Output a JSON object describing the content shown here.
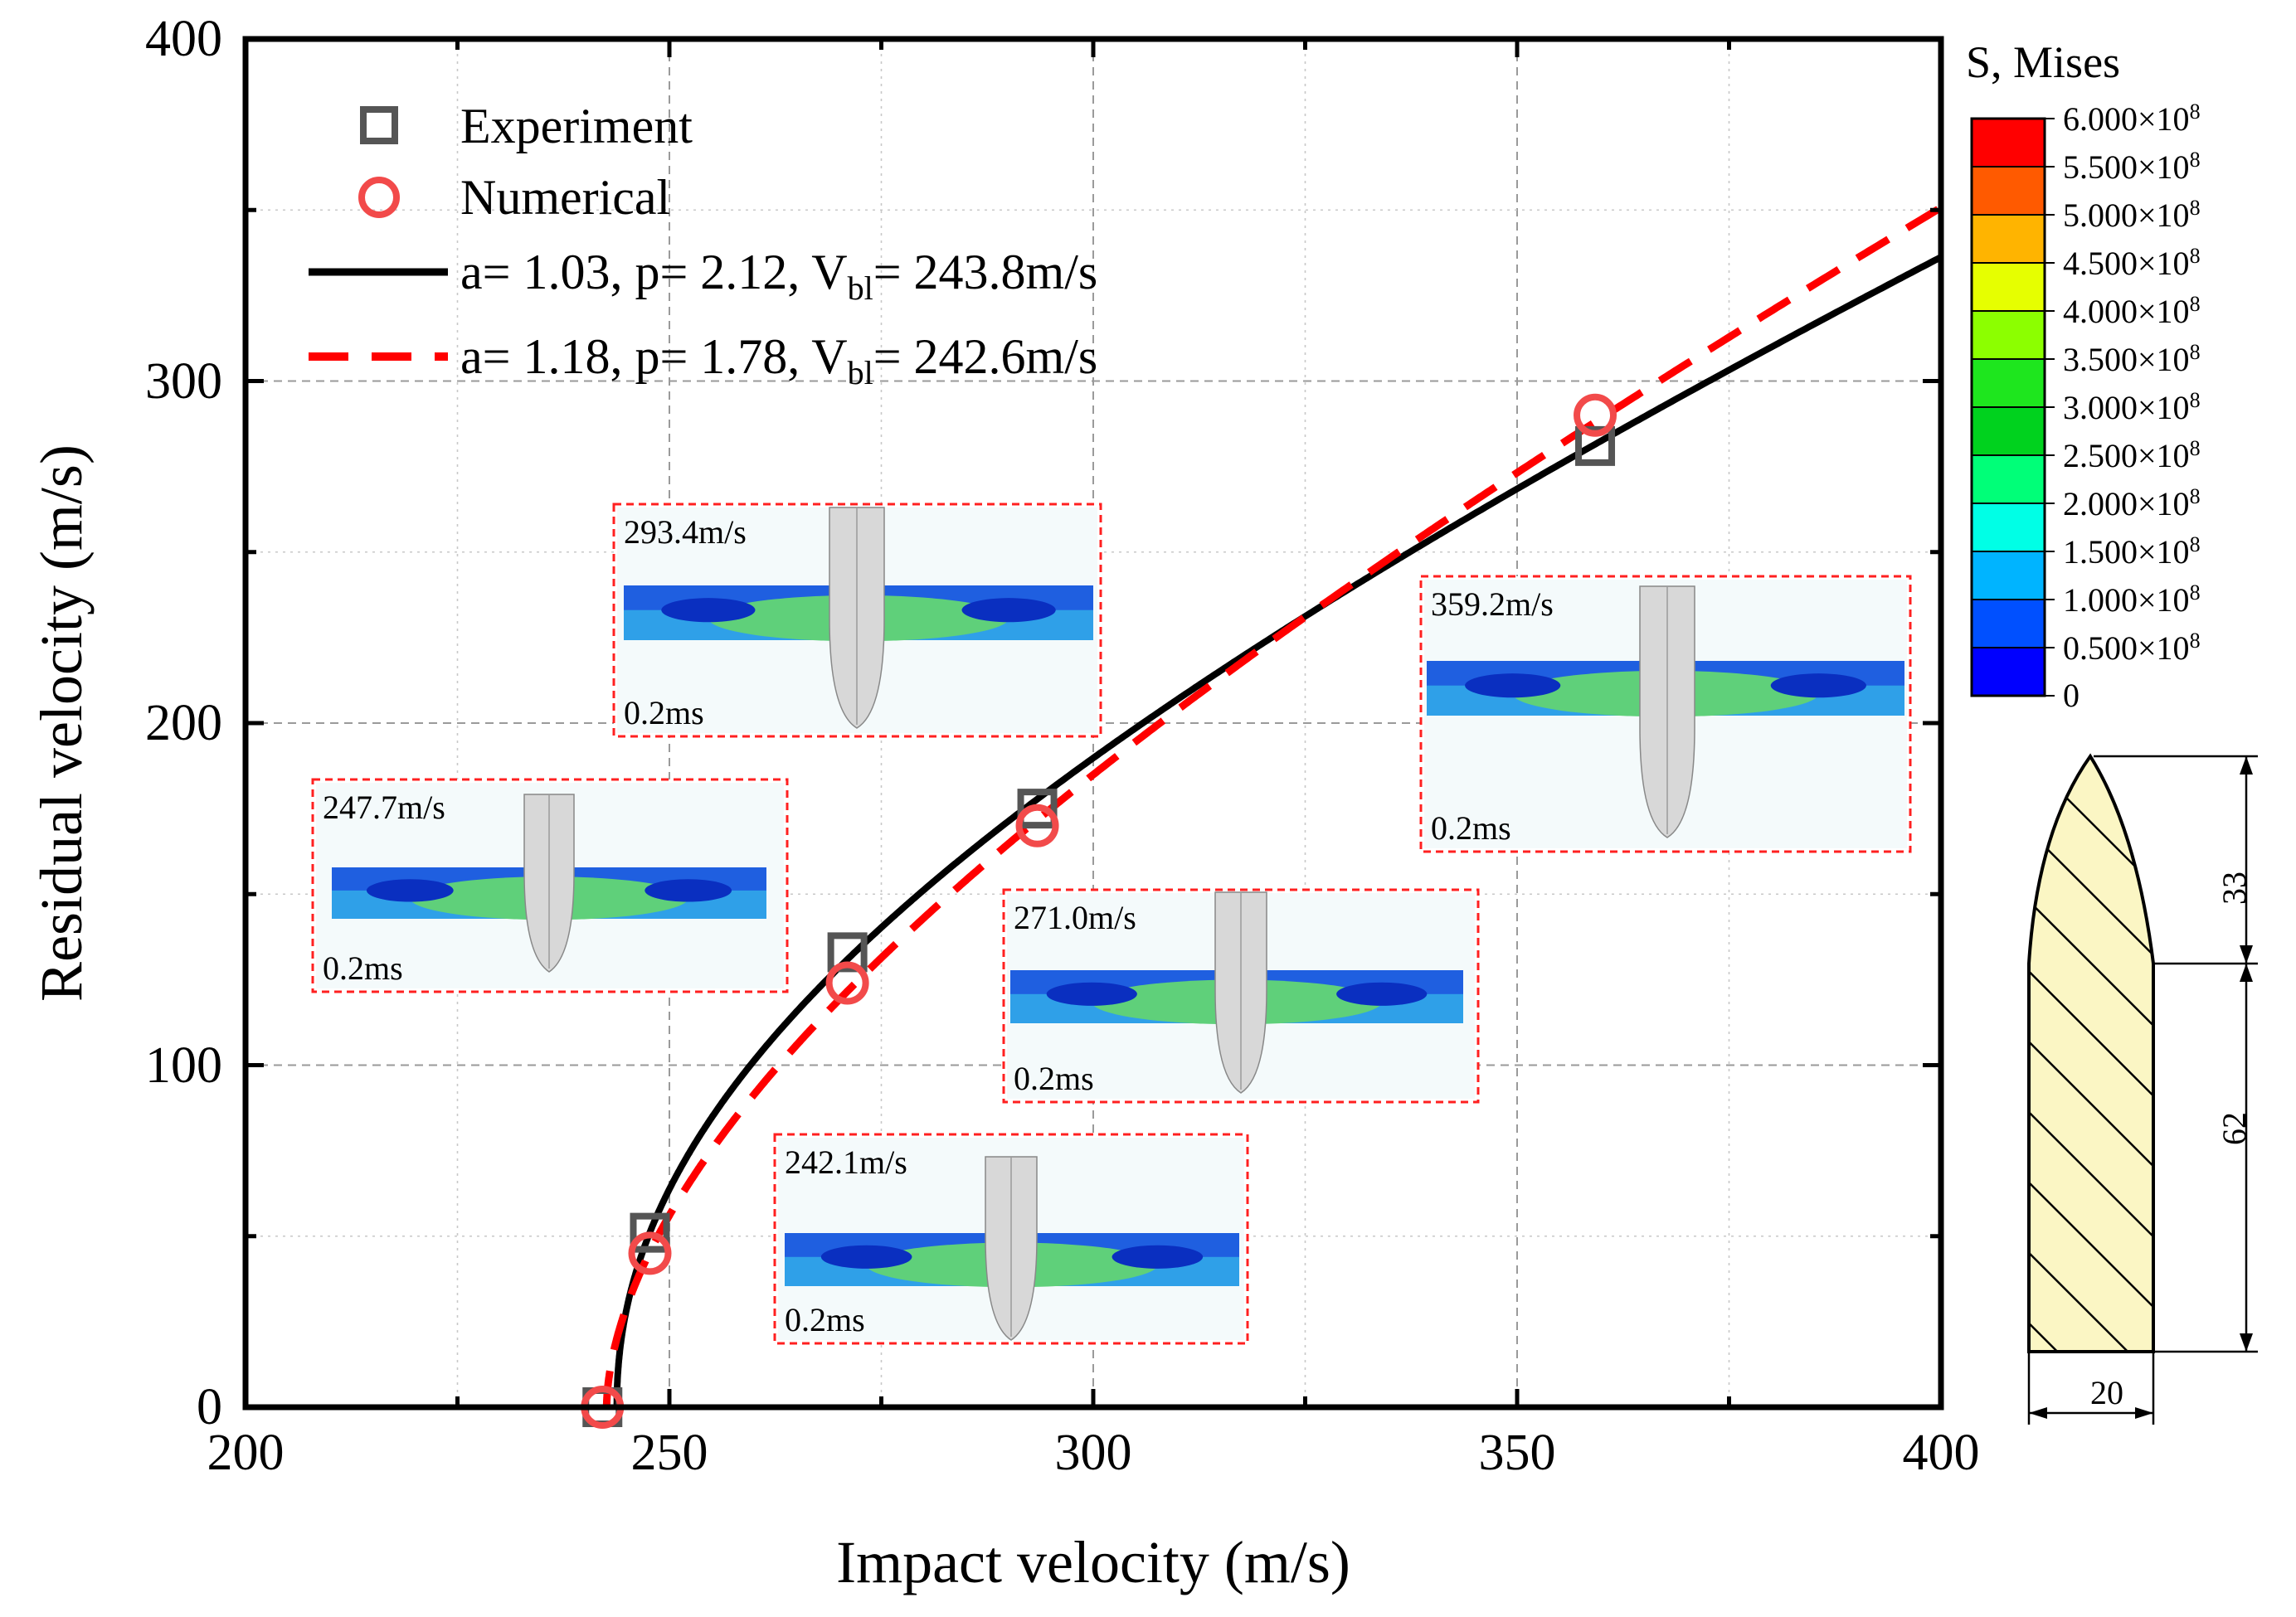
{
  "chart_data": {
    "type": "scatter",
    "title": "",
    "xlabel": "Impact velocity (m/s)",
    "ylabel": "Residual velocity (m/s)",
    "xlim": [
      200,
      400
    ],
    "ylim": [
      0,
      400
    ],
    "x_ticks": [
      200,
      250,
      300,
      350,
      400
    ],
    "y_ticks": [
      0,
      100,
      200,
      300,
      400
    ],
    "x_tick_labels": [
      "200",
      "250",
      "300",
      "350",
      "400"
    ],
    "y_tick_labels": [
      "0",
      "100",
      "200",
      "300",
      "400"
    ],
    "grid": true,
    "legend_position": "top-left",
    "series": [
      {
        "name": "Experiment",
        "kind": "scatter",
        "marker": "square",
        "color": "#555555",
        "x": [
          242.1,
          247.7,
          271.0,
          293.4,
          359.2
        ],
        "y": [
          0,
          51,
          133,
          175,
          281
        ]
      },
      {
        "name": "Numerical",
        "kind": "scatter",
        "marker": "circle",
        "color": "#f24a4a",
        "x": [
          242.1,
          247.7,
          271.0,
          293.4,
          359.2
        ],
        "y": [
          0,
          45,
          124,
          170,
          290
        ]
      },
      {
        "name": "fit-experiment",
        "kind": "line",
        "style": "solid",
        "color": "#000000",
        "a": 1.03,
        "p": 2.12,
        "vbl": 243.8
      },
      {
        "name": "fit-numerical",
        "kind": "line",
        "style": "dashed",
        "color": "#ff0000",
        "a": 1.18,
        "p": 1.78,
        "vbl": 242.6
      }
    ],
    "legend": [
      {
        "label": "Experiment"
      },
      {
        "label": "Numerical"
      },
      {
        "label_pre": "a= 1.03, p= 2.12, V",
        "label_sub": "bl",
        "label_post": "= 243.8m/s"
      },
      {
        "label_pre": "a= 1.18, p= 1.78, V",
        "label_sub": "bl",
        "label_post": "= 242.6m/s"
      }
    ],
    "insets": [
      {
        "velocity": "293.4m/s",
        "time": "0.2ms"
      },
      {
        "velocity": "247.7m/s",
        "time": "0.2ms"
      },
      {
        "velocity": "271.0m/s",
        "time": "0.2ms"
      },
      {
        "velocity": "242.1m/s",
        "time": "0.2ms"
      },
      {
        "velocity": "359.2m/s",
        "time": "0.2ms"
      }
    ],
    "colorbar": {
      "title": "S, Mises",
      "colors": [
        "#ff0000",
        "#ff5a00",
        "#ffb400",
        "#e6ff00",
        "#8cff00",
        "#1ee61e",
        "#00d21e",
        "#00ff78",
        "#00ffe6",
        "#00b4ff",
        "#0050ff",
        "#0000ff"
      ],
      "labels": [
        {
          "base": "6.000×10",
          "exp": "8"
        },
        {
          "base": "5.500×10",
          "exp": "8"
        },
        {
          "base": "5.000×10",
          "exp": "8"
        },
        {
          "base": "4.500×10",
          "exp": "8"
        },
        {
          "base": "4.000×10",
          "exp": "8"
        },
        {
          "base": "3.500×10",
          "exp": "8"
        },
        {
          "base": "3.000×10",
          "exp": "8"
        },
        {
          "base": "2.500×10",
          "exp": "8"
        },
        {
          "base": "2.000×10",
          "exp": "8"
        },
        {
          "base": "1.500×10",
          "exp": "8"
        },
        {
          "base": "1.000×10",
          "exp": "8"
        },
        {
          "base": "0.500×10",
          "exp": "8"
        },
        {
          "base": "0",
          "exp": ""
        }
      ]
    },
    "projectile": {
      "nose_length": "33",
      "body_length": "62",
      "diameter": "20",
      "fill": "#fbf6c4"
    }
  }
}
